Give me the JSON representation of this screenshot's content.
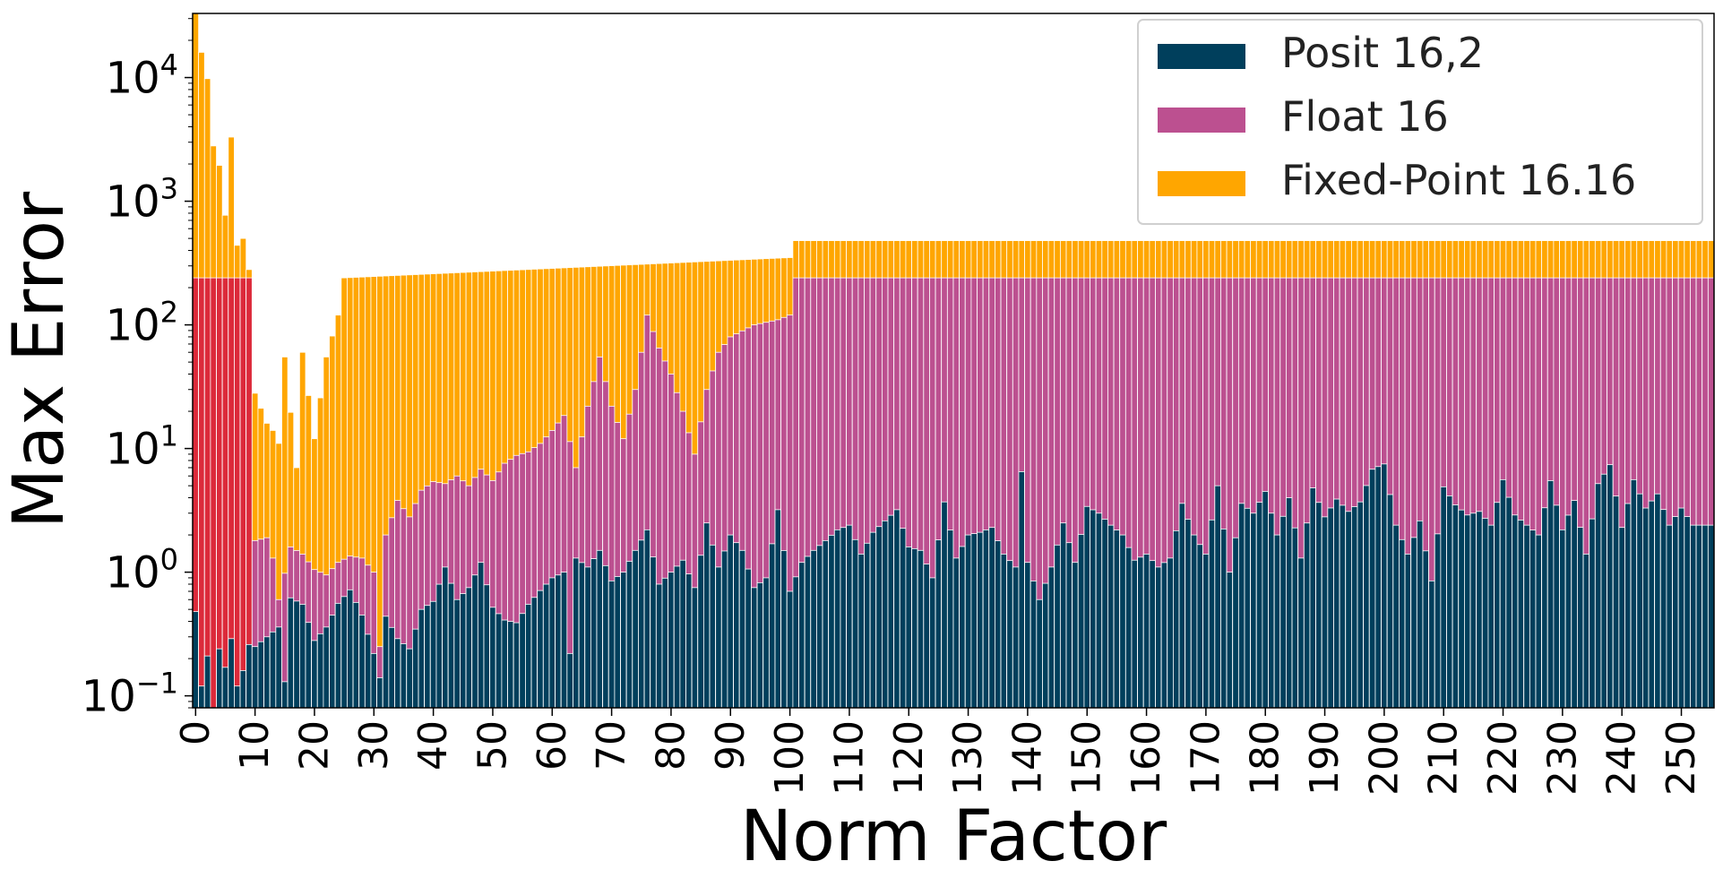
{
  "chart_data": {
    "type": "bar",
    "stacking": "overlaid",
    "xlabel": "Norm Factor",
    "ylabel": "Max Error",
    "yscale": "log",
    "ylim": [
      0.08,
      33000
    ],
    "xlim": [
      -0.5,
      255.5
    ],
    "grid": false,
    "legend_position": "top-right",
    "x_ticks": [
      0,
      10,
      20,
      30,
      40,
      50,
      60,
      70,
      80,
      90,
      100,
      110,
      120,
      130,
      140,
      150,
      160,
      170,
      180,
      190,
      200,
      210,
      220,
      230,
      240,
      250
    ],
    "y_ticks": [
      {
        "base": "10",
        "exp": "−1",
        "value": 0.1
      },
      {
        "base": "10",
        "exp": "0",
        "value": 1
      },
      {
        "base": "10",
        "exp": "1",
        "value": 10
      },
      {
        "base": "10",
        "exp": "2",
        "value": 100
      },
      {
        "base": "10",
        "exp": "3",
        "value": 1000
      },
      {
        "base": "10",
        "exp": "4",
        "value": 10000
      }
    ],
    "x_start": 0,
    "x_end": 255,
    "colors": {
      "posit": "#003f5c",
      "float": "#bc5090",
      "fixed": "#ffa600",
      "float_low_range": "#dc2a3a"
    },
    "series": [
      {
        "name": "Posit 16,2",
        "color": "#003f5c",
        "profile": [
          [
            0,
            0.48
          ],
          [
            1,
            0.12
          ],
          [
            2,
            0.21
          ],
          [
            3,
            0.08
          ],
          [
            4,
            0.24
          ],
          [
            5,
            0.17
          ],
          [
            6,
            0.29
          ],
          [
            7,
            0.12
          ],
          [
            8,
            0.16
          ],
          [
            9,
            0.26
          ],
          [
            10,
            0.25
          ],
          [
            12,
            0.3
          ],
          [
            14,
            0.36
          ],
          [
            15,
            0.13
          ],
          [
            16,
            0.62
          ],
          [
            18,
            0.55
          ],
          [
            20,
            0.28
          ],
          [
            22,
            0.36
          ],
          [
            24,
            0.56
          ],
          [
            26,
            0.72
          ],
          [
            28,
            0.45
          ],
          [
            30,
            0.22
          ],
          [
            31,
            0.14
          ],
          [
            32,
            0.44
          ],
          [
            34,
            0.29
          ],
          [
            36,
            0.24
          ],
          [
            38,
            0.5
          ],
          [
            40,
            0.58
          ],
          [
            42,
            1.1
          ],
          [
            44,
            0.6
          ],
          [
            46,
            0.75
          ],
          [
            48,
            1.2
          ],
          [
            50,
            0.52
          ],
          [
            52,
            0.41
          ],
          [
            54,
            0.39
          ],
          [
            56,
            0.55
          ],
          [
            58,
            0.71
          ],
          [
            60,
            0.9
          ],
          [
            62,
            1.0
          ],
          [
            63,
            0.22
          ],
          [
            64,
            1.3
          ],
          [
            66,
            1.1
          ],
          [
            68,
            1.5
          ],
          [
            70,
            0.85
          ],
          [
            72,
            1.0
          ],
          [
            74,
            1.5
          ],
          [
            76,
            2.2
          ],
          [
            78,
            0.8
          ],
          [
            80,
            1.0
          ],
          [
            82,
            1.25
          ],
          [
            84,
            0.75
          ],
          [
            86,
            2.5
          ],
          [
            88,
            1.1
          ],
          [
            90,
            2.0
          ],
          [
            92,
            1.5
          ],
          [
            94,
            0.75
          ],
          [
            96,
            0.9
          ],
          [
            98,
            3.2
          ],
          [
            100,
            0.7
          ],
          [
            102,
            1.2
          ],
          [
            104,
            1.5
          ],
          [
            106,
            1.8
          ],
          [
            108,
            2.2
          ],
          [
            110,
            2.4
          ],
          [
            112,
            1.4
          ],
          [
            114,
            2.1
          ],
          [
            116,
            2.6
          ],
          [
            118,
            3.2
          ],
          [
            120,
            1.6
          ],
          [
            122,
            1.5
          ],
          [
            124,
            0.9
          ],
          [
            126,
            3.7
          ],
          [
            128,
            1.3
          ],
          [
            130,
            2.0
          ],
          [
            132,
            2.1
          ],
          [
            134,
            2.3
          ],
          [
            136,
            1.4
          ],
          [
            138,
            1.1
          ],
          [
            139,
            6.5
          ],
          [
            140,
            1.2
          ],
          [
            142,
            0.6
          ],
          [
            144,
            1.1
          ],
          [
            146,
            2.5
          ],
          [
            148,
            1.2
          ],
          [
            150,
            3.4
          ],
          [
            152,
            3.0
          ],
          [
            154,
            2.4
          ],
          [
            156,
            2.0
          ],
          [
            158,
            1.25
          ],
          [
            160,
            1.4
          ],
          [
            162,
            1.1
          ],
          [
            164,
            1.3
          ],
          [
            166,
            3.6
          ],
          [
            168,
            2.0
          ],
          [
            170,
            1.4
          ],
          [
            172,
            5.0
          ],
          [
            174,
            1.0
          ],
          [
            176,
            3.6
          ],
          [
            178,
            3.0
          ],
          [
            180,
            4.5
          ],
          [
            182,
            2.0
          ],
          [
            184,
            4.0
          ],
          [
            186,
            1.3
          ],
          [
            188,
            4.8
          ],
          [
            190,
            2.8
          ],
          [
            192,
            3.9
          ],
          [
            194,
            3.1
          ],
          [
            196,
            3.7
          ],
          [
            198,
            6.8
          ],
          [
            200,
            7.5
          ],
          [
            202,
            2.4
          ],
          [
            204,
            1.4
          ],
          [
            206,
            2.6
          ],
          [
            208,
            0.85
          ],
          [
            210,
            4.9
          ],
          [
            212,
            3.5
          ],
          [
            214,
            2.9
          ],
          [
            216,
            3.1
          ],
          [
            218,
            2.4
          ],
          [
            220,
            5.6
          ],
          [
            222,
            2.9
          ],
          [
            224,
            2.4
          ],
          [
            226,
            2.0
          ],
          [
            228,
            5.5
          ],
          [
            230,
            2.2
          ],
          [
            232,
            3.8
          ],
          [
            234,
            1.4
          ],
          [
            236,
            5.2
          ],
          [
            238,
            7.4
          ],
          [
            240,
            2.3
          ],
          [
            242,
            5.6
          ],
          [
            244,
            3.3
          ],
          [
            246,
            4.3
          ],
          [
            248,
            2.4
          ],
          [
            250,
            3.3
          ],
          [
            252,
            2.4
          ],
          [
            255,
            2.4
          ]
        ]
      },
      {
        "name": "Float 16",
        "color": "#bc5090",
        "profile": [
          [
            0,
            240
          ],
          [
            9,
            240
          ],
          [
            10,
            1.8
          ],
          [
            12,
            1.9
          ],
          [
            13,
            1.3
          ],
          [
            14,
            0.6
          ],
          [
            16,
            1.6
          ],
          [
            18,
            1.4
          ],
          [
            20,
            1.05
          ],
          [
            22,
            0.95
          ],
          [
            24,
            1.2
          ],
          [
            26,
            1.35
          ],
          [
            28,
            1.3
          ],
          [
            30,
            1.0
          ],
          [
            31,
            0.25
          ],
          [
            32,
            2.0
          ],
          [
            34,
            3.8
          ],
          [
            36,
            2.8
          ],
          [
            38,
            4.6
          ],
          [
            40,
            5.4
          ],
          [
            42,
            5.2
          ],
          [
            44,
            6.0
          ],
          [
            46,
            5.0
          ],
          [
            48,
            6.8
          ],
          [
            50,
            5.5
          ],
          [
            52,
            7.6
          ],
          [
            54,
            8.8
          ],
          [
            56,
            9.4
          ],
          [
            58,
            11.0
          ],
          [
            60,
            14.0
          ],
          [
            62,
            18.5
          ],
          [
            64,
            7.0
          ],
          [
            66,
            22.0
          ],
          [
            68,
            55.0
          ],
          [
            70,
            22.0
          ],
          [
            72,
            12.0
          ],
          [
            74,
            30.0
          ],
          [
            76,
            120.0
          ],
          [
            78,
            65.0
          ],
          [
            80,
            40.0
          ],
          [
            82,
            20.0
          ],
          [
            84,
            9.0
          ],
          [
            86,
            30.0
          ],
          [
            88,
            60.0
          ],
          [
            90,
            80.0
          ],
          [
            94,
            100.0
          ],
          [
            98,
            110.0
          ],
          [
            100,
            120.0
          ],
          [
            101,
            240.0
          ],
          [
            255,
            240.0
          ]
        ]
      },
      {
        "name": "Fixed-Point 16.16",
        "color": "#ffa600",
        "profile": [
          [
            0,
            33000
          ],
          [
            1,
            16000
          ],
          [
            2,
            9800
          ],
          [
            3,
            2800
          ],
          [
            4,
            1950
          ],
          [
            5,
            770
          ],
          [
            6,
            3300
          ],
          [
            7,
            440
          ],
          [
            8,
            500
          ],
          [
            9,
            280
          ],
          [
            10,
            28
          ],
          [
            12,
            16
          ],
          [
            13,
            14
          ],
          [
            14,
            11
          ],
          [
            15,
            55
          ],
          [
            17,
            7.0
          ],
          [
            18,
            60
          ],
          [
            20,
            12
          ],
          [
            22,
            55
          ],
          [
            24,
            120
          ],
          [
            25,
            240
          ],
          [
            100,
            350
          ],
          [
            101,
            480
          ],
          [
            255,
            480
          ]
        ]
      }
    ]
  }
}
